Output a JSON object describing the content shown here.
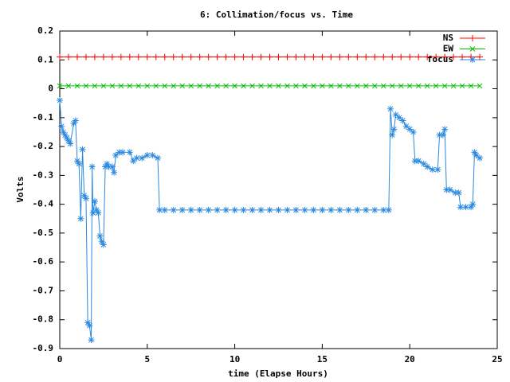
{
  "chart_data": {
    "type": "line",
    "title": "6: Collimation/focus vs. Time",
    "xlabel": "time (Elapse Hours)",
    "ylabel": "Volts",
    "xlim": [
      0,
      25
    ],
    "xticks": [
      0,
      5,
      10,
      15,
      20,
      25
    ],
    "ylim": [
      -0.9,
      0.2
    ],
    "yticks": [
      0.2,
      0.1,
      0,
      -0.1,
      -0.2,
      -0.3,
      -0.4,
      -0.5,
      -0.6,
      -0.7,
      -0.8,
      -0.9
    ],
    "legend": "top-right",
    "series": [
      {
        "name": "NS",
        "color": "#ff0000",
        "marker": "plus",
        "x": [
          0,
          0.5,
          1,
          1.5,
          2,
          2.5,
          3,
          3.5,
          4,
          4.5,
          5,
          5.5,
          6,
          6.5,
          7,
          7.5,
          8,
          8.5,
          9,
          9.5,
          10,
          10.5,
          11,
          11.5,
          12,
          12.5,
          13,
          13.5,
          14,
          14.5,
          15,
          15.5,
          16,
          16.5,
          17,
          17.5,
          18,
          18.5,
          19,
          19.5,
          20,
          20.5,
          21,
          21.5,
          22,
          22.5,
          23,
          23.5,
          24
        ],
        "values": [
          0.11,
          0.11,
          0.11,
          0.11,
          0.11,
          0.11,
          0.11,
          0.11,
          0.11,
          0.11,
          0.11,
          0.11,
          0.11,
          0.11,
          0.11,
          0.11,
          0.11,
          0.11,
          0.11,
          0.11,
          0.11,
          0.11,
          0.11,
          0.11,
          0.11,
          0.11,
          0.11,
          0.11,
          0.11,
          0.11,
          0.11,
          0.11,
          0.11,
          0.11,
          0.11,
          0.11,
          0.11,
          0.11,
          0.11,
          0.11,
          0.11,
          0.11,
          0.11,
          0.11,
          0.11,
          0.11,
          0.11,
          0.11,
          0.11
        ]
      },
      {
        "name": "EW",
        "color": "#00c000",
        "marker": "cross",
        "x": [
          0,
          0.5,
          1,
          1.5,
          2,
          2.5,
          3,
          3.5,
          4,
          4.5,
          5,
          5.5,
          6,
          6.5,
          7,
          7.5,
          8,
          8.5,
          9,
          9.5,
          10,
          10.5,
          11,
          11.5,
          12,
          12.5,
          13,
          13.5,
          14,
          14.5,
          15,
          15.5,
          16,
          16.5,
          17,
          17.5,
          18,
          18.5,
          19,
          19.5,
          20,
          20.5,
          21,
          21.5,
          22,
          22.5,
          23,
          23.5,
          24
        ],
        "values": [
          0.01,
          0.01,
          0.01,
          0.01,
          0.01,
          0.01,
          0.01,
          0.01,
          0.01,
          0.01,
          0.01,
          0.01,
          0.01,
          0.01,
          0.01,
          0.01,
          0.01,
          0.01,
          0.01,
          0.01,
          0.01,
          0.01,
          0.01,
          0.01,
          0.01,
          0.01,
          0.01,
          0.01,
          0.01,
          0.01,
          0.01,
          0.01,
          0.01,
          0.01,
          0.01,
          0.01,
          0.01,
          0.01,
          0.01,
          0.01,
          0.01,
          0.01,
          0.01,
          0.01,
          0.01,
          0.01,
          0.01,
          0.01,
          0.01
        ]
      },
      {
        "name": "focus",
        "color": "#2b8ae0",
        "marker": "star",
        "x": [
          0,
          0.1,
          0.2,
          0.3,
          0.4,
          0.5,
          0.6,
          0.8,
          0.9,
          1.0,
          1.1,
          1.2,
          1.3,
          1.4,
          1.5,
          1.6,
          1.7,
          1.8,
          1.85,
          1.9,
          2.0,
          2.1,
          2.2,
          2.3,
          2.4,
          2.5,
          2.6,
          2.7,
          2.8,
          3.0,
          3.1,
          3.2,
          3.4,
          3.6,
          4.0,
          4.2,
          4.4,
          4.7,
          5.0,
          5.3,
          5.6,
          5.7,
          6,
          6.5,
          7,
          7.5,
          8,
          8.5,
          9,
          9.5,
          10,
          10.5,
          11,
          11.5,
          12,
          12.5,
          13,
          13.5,
          14,
          14.5,
          15,
          15.5,
          16,
          16.5,
          17,
          17.5,
          18,
          18.5,
          18.8,
          18.9,
          19.0,
          19.1,
          19.2,
          19.4,
          19.6,
          19.8,
          20.0,
          20.2,
          20.3,
          20.5,
          20.8,
          21.0,
          21.3,
          21.6,
          21.7,
          21.9,
          22.0,
          22.1,
          22.3,
          22.6,
          22.8,
          22.9,
          23.2,
          23.5,
          23.6,
          23.7,
          23.8,
          24.0
        ],
        "values": [
          -0.04,
          -0.13,
          -0.15,
          -0.16,
          -0.17,
          -0.18,
          -0.19,
          -0.12,
          -0.11,
          -0.25,
          -0.26,
          -0.45,
          -0.21,
          -0.37,
          -0.38,
          -0.81,
          -0.82,
          -0.87,
          -0.27,
          -0.43,
          -0.39,
          -0.42,
          -0.43,
          -0.51,
          -0.53,
          -0.54,
          -0.27,
          -0.26,
          -0.27,
          -0.27,
          -0.29,
          -0.23,
          -0.22,
          -0.22,
          -0.22,
          -0.25,
          -0.24,
          -0.24,
          -0.23,
          -0.23,
          -0.24,
          -0.42,
          -0.42,
          -0.42,
          -0.42,
          -0.42,
          -0.42,
          -0.42,
          -0.42,
          -0.42,
          -0.42,
          -0.42,
          -0.42,
          -0.42,
          -0.42,
          -0.42,
          -0.42,
          -0.42,
          -0.42,
          -0.42,
          -0.42,
          -0.42,
          -0.42,
          -0.42,
          -0.42,
          -0.42,
          -0.42,
          -0.42,
          -0.42,
          -0.07,
          -0.16,
          -0.14,
          -0.09,
          -0.1,
          -0.11,
          -0.13,
          -0.14,
          -0.15,
          -0.25,
          -0.25,
          -0.26,
          -0.27,
          -0.28,
          -0.28,
          -0.16,
          -0.16,
          -0.14,
          -0.35,
          -0.35,
          -0.36,
          -0.36,
          -0.41,
          -0.41,
          -0.41,
          -0.4,
          -0.22,
          -0.23,
          -0.24
        ]
      }
    ]
  }
}
